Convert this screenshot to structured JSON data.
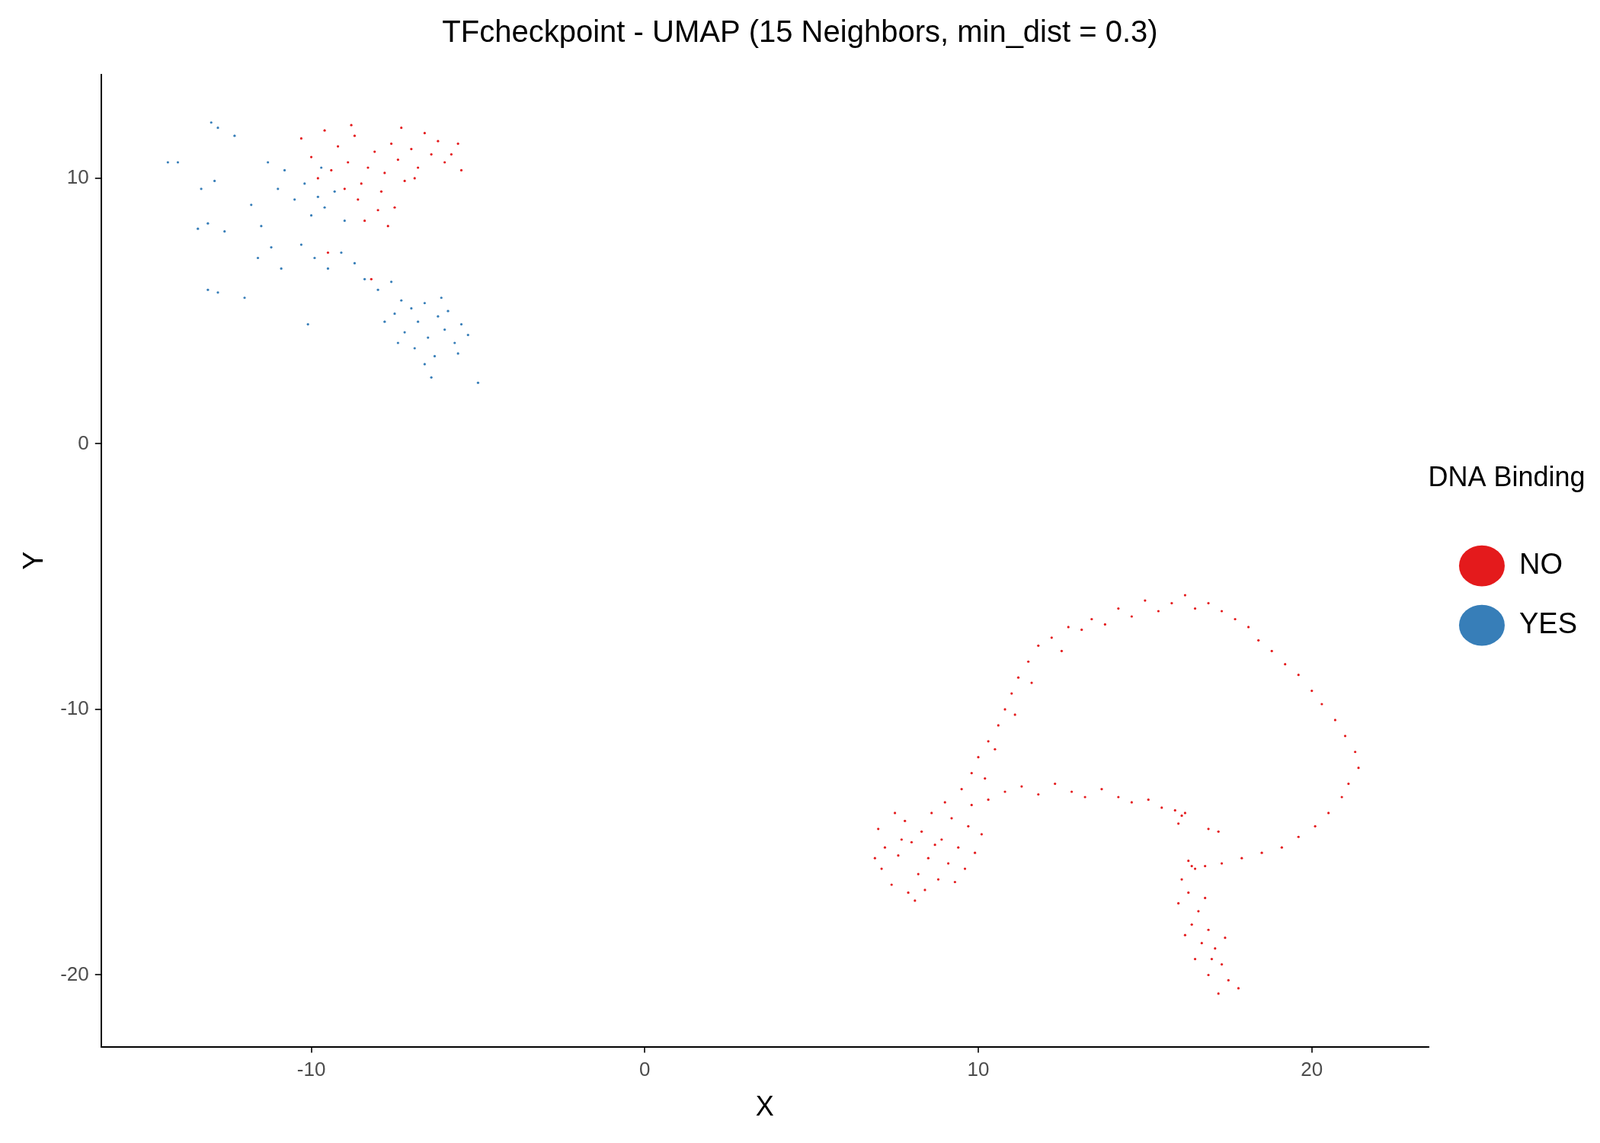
{
  "chart_data": {
    "type": "scatter",
    "title": "TFcheckpoint - UMAP (15 Neighbors, min_dist = 0.3)",
    "x_label": "X",
    "y_label": "Y",
    "xlim": [
      -16.3,
      23.5
    ],
    "ylim": [
      -22.7,
      13.9
    ],
    "xticks": [
      -10,
      0,
      10,
      20
    ],
    "yticks": [
      -20,
      -10,
      0,
      10
    ],
    "grid": false,
    "legend": "right",
    "legend_title": "DNA Binding",
    "series": [
      {
        "name": "NO",
        "color": "#E41A1C",
        "values": [
          [
            7.0,
            -14.5
          ],
          [
            7.2,
            -15.2
          ],
          [
            7.1,
            -16.0
          ],
          [
            7.4,
            -16.6
          ],
          [
            7.6,
            -15.5
          ],
          [
            7.8,
            -14.2
          ],
          [
            7.9,
            -16.9
          ],
          [
            8.0,
            -15.0
          ],
          [
            8.2,
            -16.2
          ],
          [
            8.3,
            -14.6
          ],
          [
            8.5,
            -15.6
          ],
          [
            8.6,
            -13.9
          ],
          [
            8.8,
            -16.4
          ],
          [
            8.9,
            -14.9
          ],
          [
            9.1,
            -15.8
          ],
          [
            9.2,
            -14.1
          ],
          [
            9.4,
            -15.2
          ],
          [
            9.6,
            -16.0
          ],
          [
            9.7,
            -14.4
          ],
          [
            9.9,
            -15.4
          ],
          [
            7.5,
            -13.9
          ],
          [
            8.1,
            -17.2
          ],
          [
            6.9,
            -15.6
          ],
          [
            8.4,
            -16.8
          ],
          [
            9.3,
            -16.5
          ],
          [
            7.7,
            -14.9
          ],
          [
            8.7,
            -15.1
          ],
          [
            9.8,
            -13.6
          ],
          [
            10.1,
            -14.7
          ],
          [
            9.0,
            -13.5
          ],
          [
            9.5,
            -13.0
          ],
          [
            9.8,
            -12.4
          ],
          [
            10.0,
            -11.8
          ],
          [
            10.3,
            -11.2
          ],
          [
            10.2,
            -12.6
          ],
          [
            10.6,
            -10.6
          ],
          [
            10.8,
            -10.0
          ],
          [
            10.5,
            -11.5
          ],
          [
            11.0,
            -9.4
          ],
          [
            11.2,
            -8.8
          ],
          [
            11.1,
            -10.2
          ],
          [
            11.5,
            -8.2
          ],
          [
            11.8,
            -7.6
          ],
          [
            11.6,
            -9.0
          ],
          [
            12.2,
            -7.3
          ],
          [
            12.5,
            -7.8
          ],
          [
            12.7,
            -6.9
          ],
          [
            13.1,
            -7.0
          ],
          [
            13.4,
            -6.6
          ],
          [
            13.8,
            -6.8
          ],
          [
            14.2,
            -6.2
          ],
          [
            14.6,
            -6.5
          ],
          [
            15.0,
            -5.9
          ],
          [
            15.4,
            -6.3
          ],
          [
            15.8,
            -6.0
          ],
          [
            16.2,
            -5.7
          ],
          [
            16.5,
            -6.2
          ],
          [
            16.9,
            -6.0
          ],
          [
            17.3,
            -6.3
          ],
          [
            17.7,
            -6.6
          ],
          [
            18.1,
            -6.9
          ],
          [
            18.4,
            -7.4
          ],
          [
            18.8,
            -7.8
          ],
          [
            19.2,
            -8.3
          ],
          [
            19.6,
            -8.7
          ],
          [
            20.0,
            -9.3
          ],
          [
            20.3,
            -9.8
          ],
          [
            20.7,
            -10.4
          ],
          [
            21.0,
            -11.0
          ],
          [
            21.3,
            -11.6
          ],
          [
            21.4,
            -12.2
          ],
          [
            21.1,
            -12.8
          ],
          [
            20.9,
            -13.3
          ],
          [
            20.5,
            -13.9
          ],
          [
            20.1,
            -14.4
          ],
          [
            19.6,
            -14.8
          ],
          [
            19.1,
            -15.2
          ],
          [
            18.5,
            -15.4
          ],
          [
            17.9,
            -15.6
          ],
          [
            17.3,
            -15.8
          ],
          [
            16.8,
            -15.9
          ],
          [
            16.4,
            -15.9
          ],
          [
            16.3,
            -15.7
          ],
          [
            16.5,
            -16.0
          ],
          [
            10.3,
            -13.4
          ],
          [
            10.8,
            -13.1
          ],
          [
            11.3,
            -12.9
          ],
          [
            11.8,
            -13.2
          ],
          [
            12.3,
            -12.8
          ],
          [
            12.8,
            -13.1
          ],
          [
            13.2,
            -13.3
          ],
          [
            13.7,
            -13.0
          ],
          [
            14.2,
            -13.3
          ],
          [
            14.6,
            -13.5
          ],
          [
            15.1,
            -13.4
          ],
          [
            15.5,
            -13.7
          ],
          [
            15.9,
            -13.8
          ],
          [
            16.1,
            -14.0
          ],
          [
            16.0,
            -14.3
          ],
          [
            16.2,
            -13.9
          ],
          [
            16.9,
            -14.5
          ],
          [
            17.2,
            -14.6
          ],
          [
            16.1,
            -16.4
          ],
          [
            16.3,
            -16.9
          ],
          [
            16.0,
            -17.3
          ],
          [
            16.6,
            -17.6
          ],
          [
            16.4,
            -18.1
          ],
          [
            16.9,
            -18.3
          ],
          [
            16.7,
            -18.8
          ],
          [
            17.1,
            -19.0
          ],
          [
            16.5,
            -19.4
          ],
          [
            17.3,
            -19.6
          ],
          [
            16.9,
            -20.0
          ],
          [
            17.5,
            -20.2
          ],
          [
            17.2,
            -20.7
          ],
          [
            17.8,
            -20.5
          ],
          [
            16.2,
            -18.5
          ],
          [
            17.4,
            -18.6
          ],
          [
            16.8,
            -17.1
          ],
          [
            17.0,
            -19.4
          ],
          [
            -10.3,
            11.5
          ],
          [
            -10.0,
            10.8
          ],
          [
            -9.6,
            11.8
          ],
          [
            -9.4,
            10.3
          ],
          [
            -9.2,
            11.2
          ],
          [
            -8.9,
            10.6
          ],
          [
            -8.7,
            11.6
          ],
          [
            -8.5,
            9.8
          ],
          [
            -8.3,
            10.4
          ],
          [
            -8.1,
            11.0
          ],
          [
            -7.9,
            9.5
          ],
          [
            -7.8,
            10.2
          ],
          [
            -7.6,
            11.3
          ],
          [
            -7.4,
            10.7
          ],
          [
            -7.2,
            9.9
          ],
          [
            -7.0,
            11.1
          ],
          [
            -6.8,
            10.4
          ],
          [
            -6.6,
            11.7
          ],
          [
            -6.4,
            10.9
          ],
          [
            -6.2,
            11.4
          ],
          [
            -6.0,
            10.6
          ],
          [
            -5.8,
            10.9
          ],
          [
            -5.6,
            11.3
          ],
          [
            -8.6,
            9.2
          ],
          [
            -8.0,
            8.8
          ],
          [
            -9.0,
            9.6
          ],
          [
            -7.5,
            8.9
          ],
          [
            -8.8,
            12.0
          ],
          [
            -7.3,
            11.9
          ],
          [
            -6.9,
            10.0
          ],
          [
            -9.8,
            10.0
          ],
          [
            -8.4,
            8.4
          ],
          [
            -5.5,
            10.3
          ],
          [
            -7.7,
            8.2
          ],
          [
            -9.5,
            7.2
          ],
          [
            -8.2,
            6.2
          ]
        ]
      },
      {
        "name": "YES",
        "color": "#377EB8",
        "values": [
          [
            -14.3,
            10.6
          ],
          [
            -14.0,
            10.6
          ],
          [
            -13.0,
            12.1
          ],
          [
            -12.8,
            11.9
          ],
          [
            -12.3,
            11.6
          ],
          [
            -13.3,
            9.6
          ],
          [
            -12.9,
            9.9
          ],
          [
            -13.4,
            8.1
          ],
          [
            -13.1,
            8.3
          ],
          [
            -12.6,
            8.0
          ],
          [
            -13.1,
            5.8
          ],
          [
            -12.8,
            5.7
          ],
          [
            -12.0,
            5.5
          ],
          [
            -11.8,
            9.0
          ],
          [
            -11.5,
            8.2
          ],
          [
            -11.3,
            10.6
          ],
          [
            -11.0,
            9.6
          ],
          [
            -10.8,
            10.3
          ],
          [
            -10.5,
            9.2
          ],
          [
            -10.2,
            9.8
          ],
          [
            -10.0,
            8.6
          ],
          [
            -9.8,
            9.3
          ],
          [
            -9.6,
            8.9
          ],
          [
            -9.3,
            9.5
          ],
          [
            -9.0,
            8.4
          ],
          [
            -10.3,
            7.5
          ],
          [
            -9.9,
            7.0
          ],
          [
            -9.5,
            6.6
          ],
          [
            -9.1,
            7.2
          ],
          [
            -8.7,
            6.8
          ],
          [
            -8.4,
            6.2
          ],
          [
            -8.0,
            5.8
          ],
          [
            -7.6,
            6.1
          ],
          [
            -7.3,
            5.4
          ],
          [
            -10.9,
            6.6
          ],
          [
            -11.2,
            7.4
          ],
          [
            -10.1,
            4.5
          ],
          [
            -7.5,
            4.9
          ],
          [
            -7.2,
            4.2
          ],
          [
            -7.0,
            5.1
          ],
          [
            -6.9,
            3.6
          ],
          [
            -6.8,
            4.6
          ],
          [
            -6.6,
            5.3
          ],
          [
            -6.5,
            4.0
          ],
          [
            -6.3,
            3.3
          ],
          [
            -6.2,
            4.8
          ],
          [
            -6.0,
            4.3
          ],
          [
            -5.9,
            5.0
          ],
          [
            -5.7,
            3.8
          ],
          [
            -5.5,
            4.5
          ],
          [
            -5.3,
            4.1
          ],
          [
            -6.4,
            2.5
          ],
          [
            -6.6,
            3.0
          ],
          [
            -5.0,
            2.3
          ],
          [
            -7.4,
            3.8
          ],
          [
            -6.1,
            5.5
          ],
          [
            -5.6,
            3.4
          ],
          [
            -7.8,
            4.6
          ],
          [
            -11.6,
            7.0
          ],
          [
            -9.7,
            10.4
          ]
        ]
      }
    ]
  }
}
